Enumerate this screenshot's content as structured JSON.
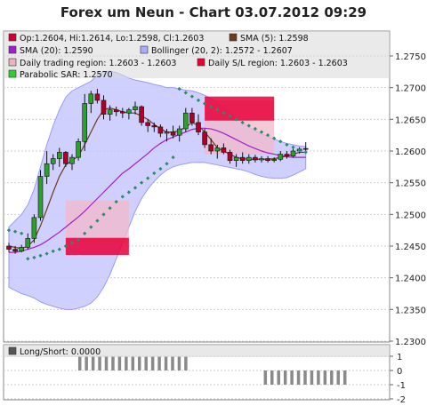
{
  "chart_data": [
    {
      "type": "candlestick",
      "title": "Forex um Neun - Chart 03.07.2012 09:29",
      "ylim": [
        1.23,
        1.275
      ],
      "y_ticks": [
        "1.2750",
        "1.2700",
        "1.2650",
        "1.2600",
        "1.2550",
        "1.2500",
        "1.2450",
        "1.2400",
        "1.2350",
        "1.2300"
      ],
      "legend": [
        {
          "label": "Op:1.2604, Hi:1.2614, Lo:1.2598, Cl:1.2603",
          "color": "#cc0033"
        },
        {
          "label": "SMA (5): 1.2598",
          "color": "#6b3a1f"
        },
        {
          "label": "SMA (20): 1.2590",
          "color": "#a020c8"
        },
        {
          "label": "Bollinger (20, 2): 1.2572 - 1.2607",
          "color": "#aaaaff"
        },
        {
          "label": "Daily trading region: 1.2603 - 1.2603",
          "color": "#e8b4c0"
        },
        {
          "label": "Daily S/L region: 1.2603 - 1.2603",
          "color": "#ee0033"
        },
        {
          "label": "Parabolic SAR: 1.2570",
          "color": "#33cc33"
        }
      ],
      "candles": [
        [
          1.245,
          1.2455,
          1.244,
          1.2445
        ],
        [
          1.2445,
          1.245,
          1.2438,
          1.2442
        ],
        [
          1.2442,
          1.2452,
          1.244,
          1.2448
        ],
        [
          1.2448,
          1.247,
          1.2445,
          1.2462
        ],
        [
          1.2462,
          1.25,
          1.2455,
          1.2495
        ],
        [
          1.2495,
          1.257,
          1.249,
          1.256
        ],
        [
          1.256,
          1.26,
          1.2548,
          1.258
        ],
        [
          1.258,
          1.2595,
          1.257,
          1.2588
        ],
        [
          1.2588,
          1.2605,
          1.2575,
          1.2598
        ],
        [
          1.2598,
          1.26,
          1.2575,
          1.258
        ],
        [
          1.258,
          1.2595,
          1.257,
          1.259
        ],
        [
          1.259,
          1.262,
          1.2585,
          1.2615
        ],
        [
          1.2615,
          1.269,
          1.26,
          1.2675
        ],
        [
          1.2675,
          1.2695,
          1.266,
          1.269
        ],
        [
          1.269,
          1.2698,
          1.2675,
          1.268
        ],
        [
          1.268,
          1.2688,
          1.265,
          1.2658
        ],
        [
          1.2658,
          1.2672,
          1.2648,
          1.2665
        ],
        [
          1.2665,
          1.267,
          1.2655,
          1.2662
        ],
        [
          1.2662,
          1.2668,
          1.2652,
          1.266
        ],
        [
          1.266,
          1.2668,
          1.265,
          1.2665
        ],
        [
          1.2665,
          1.2678,
          1.2658,
          1.267
        ],
        [
          1.267,
          1.2672,
          1.264,
          1.2645
        ],
        [
          1.2645,
          1.265,
          1.263,
          1.264
        ],
        [
          1.264,
          1.2645,
          1.263,
          1.2638
        ],
        [
          1.2638,
          1.2642,
          1.2622,
          1.2628
        ],
        [
          1.2628,
          1.2635,
          1.2615,
          1.263
        ],
        [
          1.263,
          1.264,
          1.262,
          1.2625
        ],
        [
          1.2625,
          1.264,
          1.2615,
          1.2635
        ],
        [
          1.2635,
          1.2668,
          1.263,
          1.266
        ],
        [
          1.266,
          1.2668,
          1.264,
          1.2645
        ],
        [
          1.2645,
          1.2658,
          1.2625,
          1.263
        ],
        [
          1.263,
          1.2635,
          1.2605,
          1.261
        ],
        [
          1.261,
          1.262,
          1.2595,
          1.26
        ],
        [
          1.26,
          1.261,
          1.2588,
          1.2605
        ],
        [
          1.2605,
          1.2612,
          1.2595,
          1.2598
        ],
        [
          1.2598,
          1.2602,
          1.258,
          1.2585
        ],
        [
          1.2585,
          1.2595,
          1.2575,
          1.259
        ],
        [
          1.259,
          1.2598,
          1.258,
          1.2585
        ],
        [
          1.2585,
          1.2595,
          1.258,
          1.259
        ],
        [
          1.259,
          1.2594,
          1.2582,
          1.2586
        ],
        [
          1.2586,
          1.2592,
          1.2582,
          1.2588
        ],
        [
          1.2588,
          1.2592,
          1.2582,
          1.2585
        ],
        [
          1.2585,
          1.259,
          1.2582,
          1.2587
        ],
        [
          1.2587,
          1.26,
          1.2584,
          1.2595
        ],
        [
          1.2595,
          1.26,
          1.2588,
          1.2592
        ],
        [
          1.2592,
          1.2605,
          1.259,
          1.26
        ],
        [
          1.26,
          1.2606,
          1.2596,
          1.2603
        ],
        [
          1.2604,
          1.2614,
          1.2598,
          1.2603
        ]
      ],
      "sma5": [
        1.245,
        1.2448,
        1.2446,
        1.245,
        1.246,
        1.2482,
        1.2508,
        1.2535,
        1.256,
        1.2578,
        1.2585,
        1.2592,
        1.261,
        1.263,
        1.265,
        1.2665,
        1.2668,
        1.2665,
        1.2662,
        1.266,
        1.266,
        1.2655,
        1.265,
        1.2642,
        1.2635,
        1.263,
        1.263,
        1.2632,
        1.2638,
        1.2645,
        1.264,
        1.263,
        1.2618,
        1.2605,
        1.26,
        1.2595,
        1.259,
        1.2588,
        1.2587,
        1.2587,
        1.2587,
        1.2587,
        1.2588,
        1.259,
        1.2592,
        1.2595,
        1.2598,
        1.2598
      ],
      "sma20": [
        1.244,
        1.244,
        1.2442,
        1.2445,
        1.2448,
        1.2452,
        1.2458,
        1.2465,
        1.2472,
        1.248,
        1.2488,
        1.2496,
        1.2505,
        1.2515,
        1.2525,
        1.2535,
        1.2545,
        1.2555,
        1.2565,
        1.2572,
        1.258,
        1.2588,
        1.2596,
        1.2605,
        1.2612,
        1.2618,
        1.2622,
        1.2626,
        1.263,
        1.2634,
        1.2636,
        1.2636,
        1.2635,
        1.2632,
        1.2628,
        1.2623,
        1.2618,
        1.2613,
        1.2608,
        1.2604,
        1.26,
        1.2597,
        1.2595,
        1.2593,
        1.2591,
        1.259,
        1.259,
        1.259
      ],
      "boll_upper": [
        1.248,
        1.249,
        1.25,
        1.2515,
        1.254,
        1.2575,
        1.261,
        1.264,
        1.2665,
        1.2685,
        1.2695,
        1.27,
        1.2705,
        1.271,
        1.272,
        1.2725,
        1.2726,
        1.2724,
        1.272,
        1.2715,
        1.2712,
        1.271,
        1.2708,
        1.2705,
        1.2703,
        1.27,
        1.27,
        1.2698,
        1.2696,
        1.2695,
        1.2692,
        1.2688,
        1.2683,
        1.2676,
        1.2668,
        1.266,
        1.2652,
        1.2645,
        1.2638,
        1.2632,
        1.2627,
        1.2623,
        1.2619,
        1.2615,
        1.2612,
        1.261,
        1.2608,
        1.2607
      ],
      "boll_lower": [
        1.2385,
        1.238,
        1.2375,
        1.2372,
        1.2368,
        1.2362,
        1.2358,
        1.2355,
        1.2352,
        1.235,
        1.235,
        1.2352,
        1.2355,
        1.236,
        1.237,
        1.2385,
        1.2405,
        1.243,
        1.2455,
        1.248,
        1.2505,
        1.2525,
        1.254,
        1.2552,
        1.2562,
        1.257,
        1.2575,
        1.2578,
        1.258,
        1.2582,
        1.2582,
        1.2582,
        1.258,
        1.2578,
        1.2576,
        1.2574,
        1.2572,
        1.257,
        1.2567,
        1.2563,
        1.256,
        1.2558,
        1.2557,
        1.2557,
        1.2558,
        1.2562,
        1.2567,
        1.2572
      ],
      "sar": [
        1.2475,
        1.2473,
        1.247,
        1.243,
        1.2432,
        1.2435,
        1.2438,
        1.2442,
        1.2445,
        1.245,
        1.2455,
        1.246,
        1.247,
        1.248,
        1.249,
        1.25,
        1.251,
        1.252,
        1.2528,
        1.2535,
        1.2542,
        1.255,
        1.2557,
        1.2565,
        1.2572,
        1.258,
        1.259,
        1.2698,
        1.2692,
        1.2686,
        1.268,
        1.2675,
        1.267,
        1.2665,
        1.266,
        1.2655,
        1.265,
        1.2645,
        1.264,
        1.2635,
        1.263,
        1.2625,
        1.262,
        1.2615,
        1.261,
        1.2606,
        1.2601,
        1.2598
      ],
      "sar2": [
        1.257
      ],
      "daily_regions": [
        {
          "from": 9,
          "to": 19,
          "trading": [
            1.2455,
            1.2522
          ],
          "sl": [
            1.2436,
            1.2463
          ]
        },
        {
          "from": 31,
          "to": 42,
          "trading": [
            1.2595,
            1.268
          ],
          "sl": [
            1.2648,
            1.2686
          ]
        }
      ]
    },
    {
      "type": "bar",
      "legend": [
        {
          "label": "Long/Short: 0.0000",
          "color": "#555555"
        }
      ],
      "ylim": [
        -2,
        1
      ],
      "y_ticks": [
        "1",
        "0",
        "-1",
        "-2"
      ],
      "values": [
        0,
        0,
        0,
        0,
        0,
        0,
        0,
        0,
        0,
        0,
        0,
        1,
        1,
        1,
        1,
        1,
        1,
        1,
        1,
        1,
        1,
        1,
        1,
        1,
        1,
        1,
        1,
        1,
        0,
        0,
        0,
        0,
        0,
        0,
        0,
        0,
        0,
        0,
        0,
        -1,
        -1,
        -1,
        -1,
        -1,
        -1,
        -1,
        -1,
        -1,
        -1,
        -1,
        -1,
        -1,
        0,
        0,
        0,
        0,
        0,
        0
      ]
    }
  ]
}
